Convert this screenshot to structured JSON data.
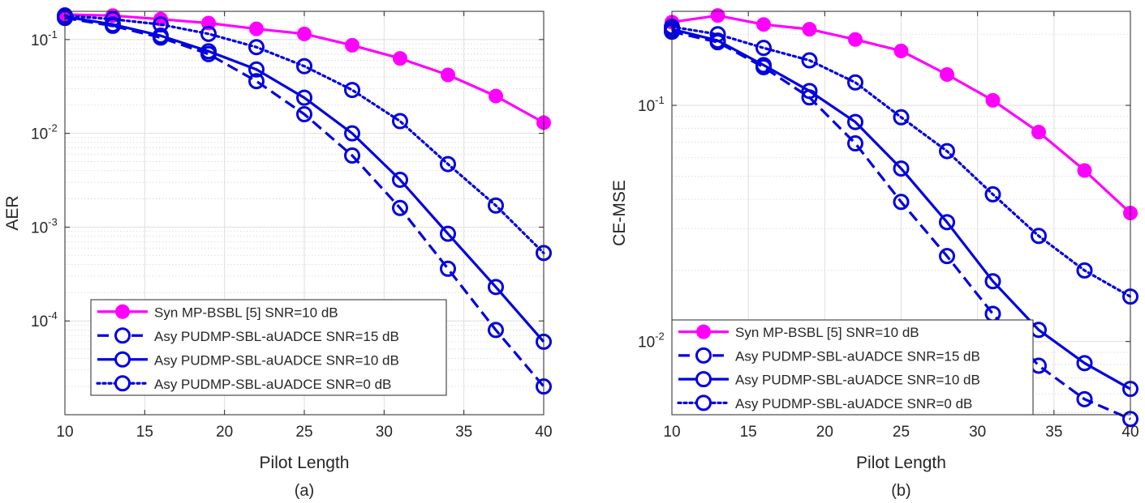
{
  "styles": {
    "syn": {
      "color": "#ff00ff",
      "dash": "",
      "marker": "filled-circle"
    },
    "asy15": {
      "color": "#0000e0",
      "dash": "14,7",
      "marker": "open-circle"
    },
    "asy10": {
      "color": "#0000e0",
      "dash": "",
      "marker": "open-circle"
    },
    "asy0": {
      "color": "#0000e0",
      "dash": "3,4",
      "marker": "open-circle"
    }
  },
  "chart_data": [
    {
      "type": "line",
      "caption": "(a)",
      "xlabel": "Pilot Length",
      "ylabel": "AER",
      "yscale": "log",
      "xlim": [
        10,
        40
      ],
      "ylim": [
        1e-05,
        0.2
      ],
      "xticks": [
        "10",
        "15",
        "20",
        "25",
        "30",
        "35",
        "40"
      ],
      "yticks": [
        {
          "value": 0.1,
          "base": "10",
          "exp": "-1"
        },
        {
          "value": 0.01,
          "base": "10",
          "exp": "-2"
        },
        {
          "value": 0.001,
          "base": "10",
          "exp": "-3"
        },
        {
          "value": 0.0001,
          "base": "10",
          "exp": "-4"
        }
      ],
      "grid": true,
      "legend": "bottom-left",
      "x": [
        10,
        13,
        16,
        19,
        22,
        25,
        28,
        31,
        34,
        37,
        40
      ],
      "series": [
        {
          "name": "Syn MP-BSBL [5] SNR=10 dB",
          "style": "syn",
          "values": [
            0.185,
            0.18,
            0.165,
            0.15,
            0.13,
            0.115,
            0.087,
            0.063,
            0.042,
            0.025,
            0.013
          ]
        },
        {
          "name": "Asy PUDMP-SBL-aUADCE SNR=15 dB",
          "style": "asy15",
          "values": [
            0.17,
            0.14,
            0.105,
            0.07,
            0.036,
            0.016,
            0.0058,
            0.0016,
            0.00036,
            8e-05,
            2e-05
          ]
        },
        {
          "name": "Asy PUDMP-SBL-aUADCE SNR=10 dB",
          "style": "asy10",
          "values": [
            0.175,
            0.145,
            0.11,
            0.075,
            0.048,
            0.024,
            0.01,
            0.0032,
            0.00085,
            0.00023,
            6e-05
          ]
        },
        {
          "name": "Asy PUDMP-SBL-aUADCE SNR=0 dB",
          "style": "asy0",
          "values": [
            0.18,
            0.165,
            0.145,
            0.115,
            0.083,
            0.052,
            0.029,
            0.0135,
            0.0047,
            0.0017,
            0.00053
          ]
        }
      ]
    },
    {
      "type": "line",
      "caption": "(b)",
      "xlabel": "Pilot Length",
      "ylabel": "CE-MSE",
      "yscale": "log",
      "xlim": [
        10,
        40
      ],
      "ylim": [
        0.0049,
        0.25
      ],
      "xticks": [
        "10",
        "15",
        "20",
        "25",
        "30",
        "35",
        "40"
      ],
      "yticks": [
        {
          "value": 0.1,
          "base": "10",
          "exp": "-1"
        },
        {
          "value": 0.01,
          "base": "10",
          "exp": "-2"
        }
      ],
      "grid": true,
      "legend": "bottom-left",
      "x": [
        10,
        13,
        16,
        19,
        22,
        25,
        28,
        31,
        34,
        37,
        40
      ],
      "series": [
        {
          "name": "Syn MP-BSBL [5] SNR=10 dB",
          "style": "syn",
          "values": [
            0.225,
            0.24,
            0.22,
            0.21,
            0.19,
            0.17,
            0.135,
            0.105,
            0.077,
            0.053,
            0.035
          ]
        },
        {
          "name": "Asy PUDMP-SBL-aUADCE SNR=15 dB",
          "style": "asy15",
          "values": [
            0.205,
            0.185,
            0.145,
            0.108,
            0.069,
            0.039,
            0.023,
            0.0131,
            0.0079,
            0.0057,
            0.0047
          ]
        },
        {
          "name": "Asy PUDMP-SBL-aUADCE SNR=10 dB",
          "style": "asy10",
          "values": [
            0.21,
            0.188,
            0.148,
            0.115,
            0.085,
            0.054,
            0.032,
            0.018,
            0.0112,
            0.0081,
            0.0063
          ]
        },
        {
          "name": "Asy PUDMP-SBL-aUADCE SNR=0 dB",
          "style": "asy0",
          "values": [
            0.215,
            0.2,
            0.175,
            0.155,
            0.125,
            0.089,
            0.064,
            0.042,
            0.028,
            0.02,
            0.0155
          ]
        }
      ]
    }
  ]
}
